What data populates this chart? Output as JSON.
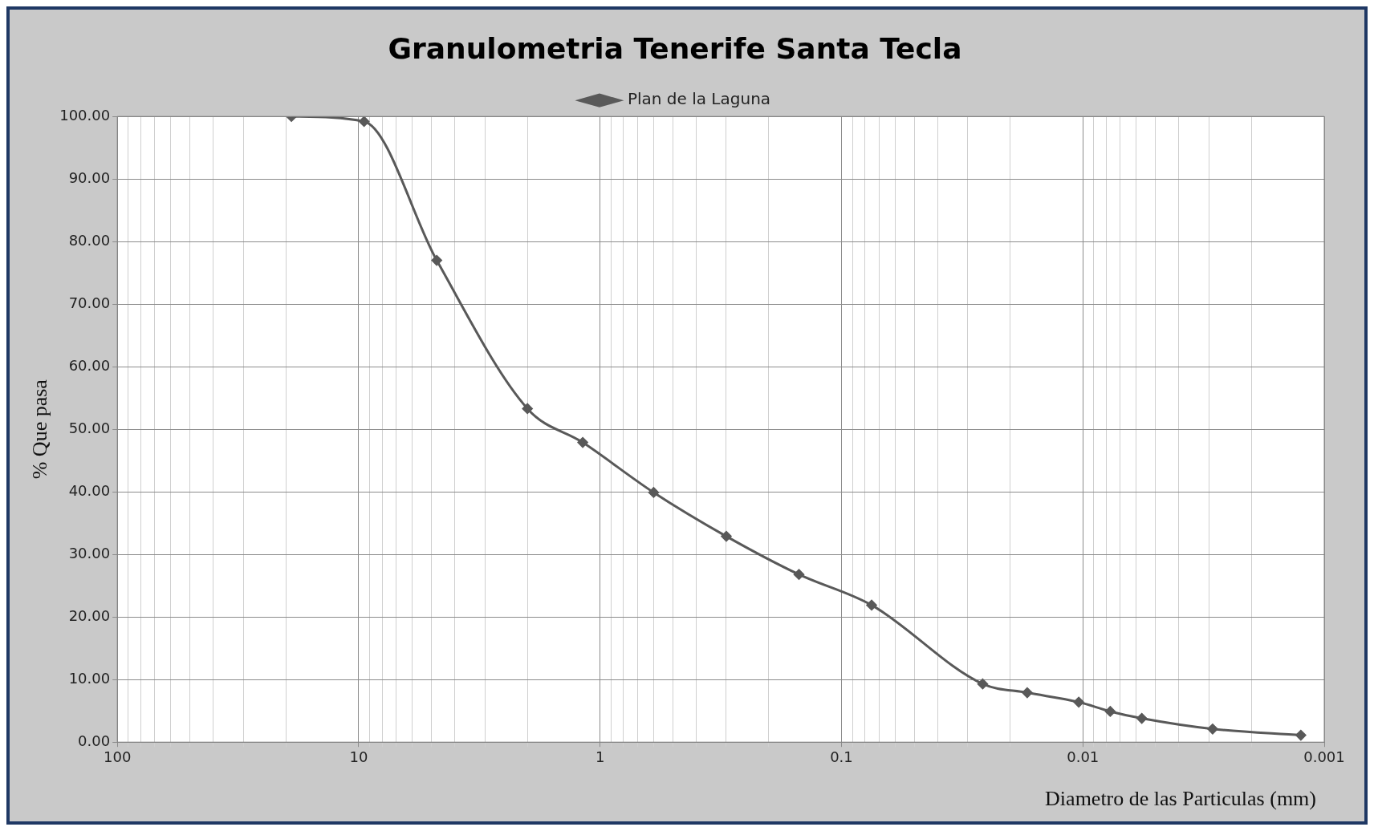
{
  "chart_data": {
    "type": "line",
    "title": "Granulometria Tenerife Santa Tecla",
    "xlabel": "Diametro de las Particulas (mm)",
    "ylabel": "% Que pasa",
    "log": "x",
    "legend": "top",
    "grid": true,
    "marker": "diamond",
    "line_style": "solid",
    "x": [
      19,
      9.5,
      4.75,
      2,
      1.18,
      0.6,
      0.3,
      0.15,
      0.075,
      0.026,
      0.017,
      0.0104,
      0.0077,
      0.0057,
      0.0029,
      0.00125
    ],
    "series": [
      {
        "name": "Plan de la Laguna",
        "color": "#595959",
        "values": [
          100,
          99.2,
          77,
          53.3,
          47.9,
          39.9,
          32.9,
          26.8,
          21.9,
          9.3,
          7.9,
          6.4,
          4.9,
          3.8,
          2.1,
          1.1
        ]
      }
    ],
    "xlim": [
      100,
      0.001
    ],
    "xticks": [
      100,
      {
        "value": 90,
        "label": null
      },
      {
        "value": 80,
        "label": null
      },
      {
        "value": 70,
        "label": null
      },
      {
        "value": 60,
        "label": null
      },
      {
        "value": 50,
        "label": null
      },
      {
        "value": 40,
        "label": null
      },
      {
        "value": 30,
        "label": null
      },
      {
        "value": 20,
        "label": null
      },
      10,
      {
        "value": 9,
        "label": null
      },
      {
        "value": 8,
        "label": null
      },
      {
        "value": 7,
        "label": null
      },
      {
        "value": 6,
        "label": null
      },
      {
        "value": 5,
        "label": null
      },
      {
        "value": 4,
        "label": null
      },
      {
        "value": 3,
        "label": null
      },
      {
        "value": 2,
        "label": null
      },
      1,
      {
        "value": 0.9,
        "label": null
      },
      {
        "value": 0.8,
        "label": null
      },
      {
        "value": 0.7,
        "label": null
      },
      {
        "value": 0.6,
        "label": null
      },
      {
        "value": 0.5,
        "label": null
      },
      {
        "value": 0.4,
        "label": null
      },
      {
        "value": 0.3,
        "label": null
      },
      {
        "value": 0.2,
        "label": null
      },
      0.1,
      {
        "value": 0.09,
        "label": null
      },
      {
        "value": 0.08,
        "label": null
      },
      {
        "value": 0.07,
        "label": null
      },
      {
        "value": 0.06,
        "label": null
      },
      {
        "value": 0.05,
        "label": null
      },
      {
        "value": 0.04,
        "label": null
      },
      {
        "value": 0.03,
        "label": null
      },
      {
        "value": 0.02,
        "label": null
      },
      0.01,
      {
        "value": 0.009,
        "label": null
      },
      {
        "value": 0.008,
        "label": null
      },
      {
        "value": 0.007,
        "label": null
      },
      {
        "value": 0.006,
        "label": null
      },
      {
        "value": 0.005,
        "label": null
      },
      {
        "value": 0.004,
        "label": null
      },
      {
        "value": 0.003,
        "label": null
      },
      {
        "value": 0.002,
        "label": null
      },
      0.001
    ],
    "ylim": [
      0,
      100
    ],
    "yticks": [
      {
        "value": 0,
        "label": "0.00"
      },
      {
        "value": 10,
        "label": "10.00"
      },
      {
        "value": 20,
        "label": "20.00"
      },
      {
        "value": 30,
        "label": "30.00"
      },
      {
        "value": 40,
        "label": "40.00"
      },
      {
        "value": 50,
        "label": "50.00"
      },
      {
        "value": 60,
        "label": "60.00"
      },
      {
        "value": 70,
        "label": "70.00"
      },
      {
        "value": 80,
        "label": "80.00"
      },
      {
        "value": 90,
        "label": "90.00"
      },
      {
        "value": 100,
        "label": "100.00"
      }
    ]
  }
}
